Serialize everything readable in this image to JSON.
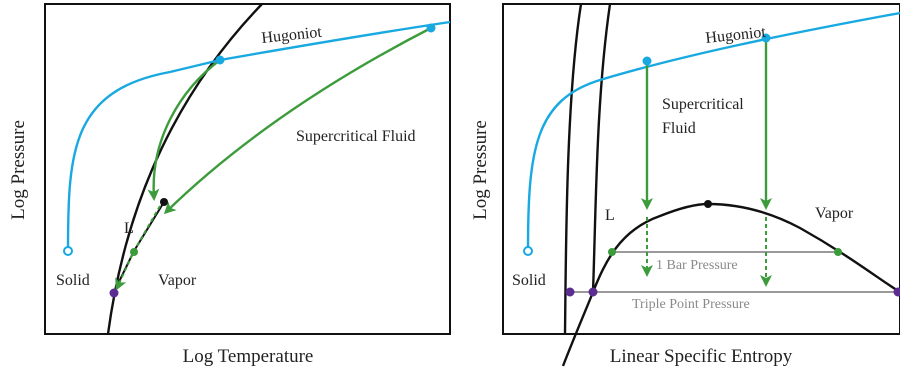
{
  "left_panel": {
    "xlabel": "Log Temperature",
    "ylabel": "Log Pressure",
    "labels": {
      "hugoniot": "Hugoniot",
      "supercritical": "Supercritical Fluid",
      "liquid": "L",
      "solid": "Solid",
      "vapor": "Vapor"
    }
  },
  "right_panel": {
    "xlabel": "Linear Specific Entropy",
    "ylabel": "Log Pressure",
    "labels": {
      "hugoniot": "Hugoniot",
      "supercritical_line1": "Supercritical",
      "supercritical_line2": "Fluid",
      "liquid": "L",
      "solid": "Solid",
      "vapor": "Vapor",
      "one_bar": "1 Bar Pressure",
      "triple_point": "Triple Point Pressure"
    }
  },
  "colors": {
    "hugoniot": "#19a9e1",
    "expansion": "#3c9c3c",
    "boundary": "#111111",
    "triple_point": "#5c2d91",
    "isobar": "#9a9a9a"
  }
}
